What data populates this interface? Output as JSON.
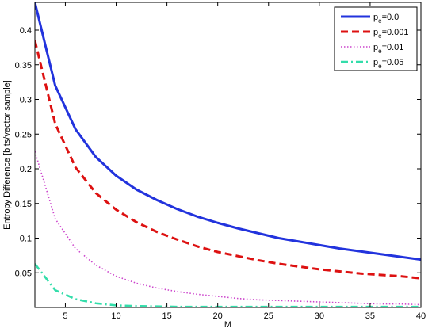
{
  "chart_data": {
    "type": "line",
    "title": "",
    "xlabel": "M",
    "ylabel": "Entropy Difference [bits/vector sample]",
    "xlim": [
      2,
      40
    ],
    "ylim": [
      0,
      0.44
    ],
    "xticks": [
      5,
      10,
      15,
      20,
      25,
      30,
      35,
      40
    ],
    "yticks": [
      0.05,
      0.1,
      0.15,
      0.2,
      0.25,
      0.3,
      0.35,
      0.4
    ],
    "x": [
      2,
      4,
      6,
      8,
      10,
      12,
      14,
      16,
      18,
      20,
      22,
      24,
      26,
      28,
      30,
      32,
      34,
      36,
      38,
      40
    ],
    "legend_position": "top-right",
    "grid": false,
    "series": [
      {
        "name": "p",
        "subscript": "e",
        "suffix": "=0.0",
        "color": "#2233dd",
        "style": "solid",
        "values": [
          0.44,
          0.32,
          0.257,
          0.217,
          0.19,
          0.17,
          0.155,
          0.142,
          0.131,
          0.122,
          0.114,
          0.107,
          0.1,
          0.095,
          0.09,
          0.085,
          0.081,
          0.077,
          0.073,
          0.069
        ]
      },
      {
        "name": "p",
        "subscript": "e",
        "suffix": "=0.001",
        "color": "#dd1111",
        "style": "dashed",
        "values": [
          0.385,
          0.265,
          0.202,
          0.165,
          0.141,
          0.123,
          0.109,
          0.098,
          0.088,
          0.08,
          0.074,
          0.068,
          0.063,
          0.059,
          0.055,
          0.052,
          0.049,
          0.047,
          0.045,
          0.042
        ]
      },
      {
        "name": "p",
        "subscript": "e",
        "suffix": "=0.01",
        "color": "#cc44cc",
        "style": "dotted",
        "values": [
          0.225,
          0.128,
          0.085,
          0.061,
          0.045,
          0.035,
          0.028,
          0.023,
          0.019,
          0.016,
          0.013,
          0.011,
          0.01,
          0.009,
          0.008,
          0.007,
          0.006,
          0.005,
          0.005,
          0.004
        ]
      },
      {
        "name": "p",
        "subscript": "e",
        "suffix": "=0.05",
        "color": "#33ddaa",
        "style": "dashdot",
        "values": [
          0.063,
          0.025,
          0.012,
          0.006,
          0.003,
          0.002,
          0.0015,
          0.001,
          0.001,
          0.001,
          0.001,
          0.001,
          0.001,
          0.001,
          0.001,
          0.001,
          0.001,
          0.001,
          0.001,
          0.001
        ]
      }
    ]
  }
}
